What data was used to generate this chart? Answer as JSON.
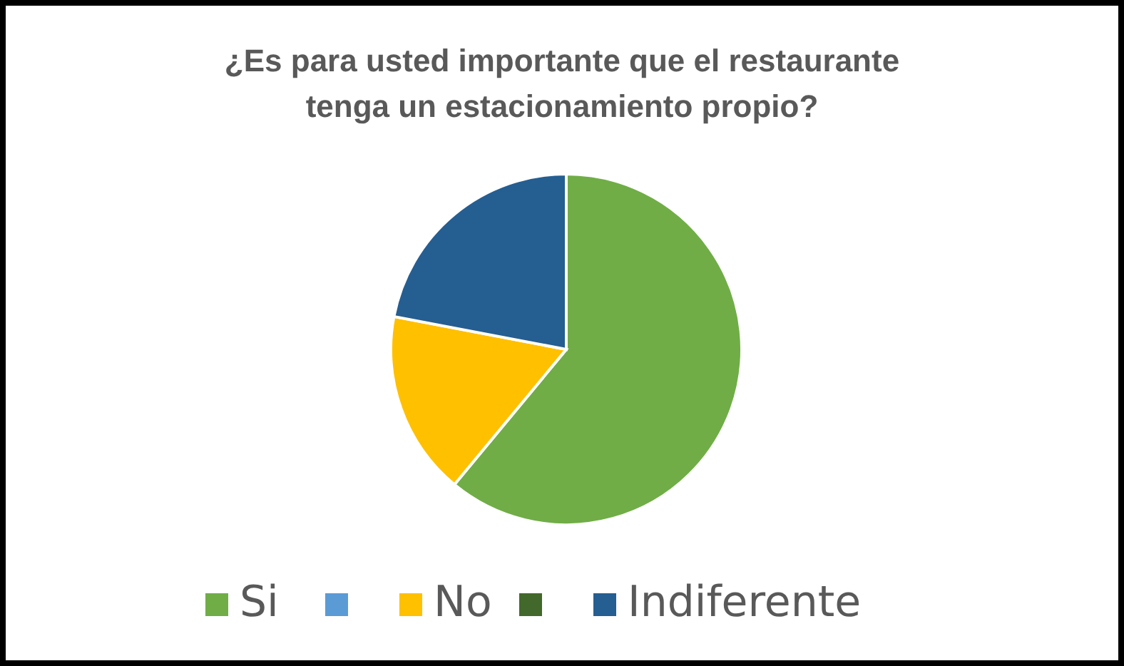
{
  "chart_data": {
    "type": "pie",
    "title": "¿Es para usted importante que el restaurante tenga un estacionamiento propio?",
    "categories": [
      "Si",
      null,
      "No",
      null,
      "Indiferente"
    ],
    "values": [
      61,
      0,
      17,
      0,
      22
    ],
    "colors": [
      "#70ad47",
      "#5b9bd5",
      "#ffc000",
      "#43682b",
      "#255e91"
    ],
    "legend": "bottom"
  }
}
